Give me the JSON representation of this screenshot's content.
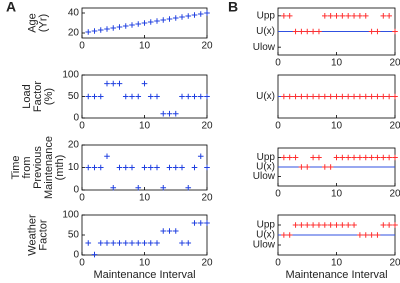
{
  "panel_labels": [
    "A",
    "B"
  ],
  "chart_data": [
    {
      "type": "scatter",
      "ylabel": [
        "Age",
        "(Yr)"
      ],
      "color": "#2040e0",
      "x": [
        1,
        2,
        3,
        4,
        5,
        6,
        7,
        8,
        9,
        10,
        11,
        12,
        13,
        14,
        15,
        16,
        17,
        18,
        19,
        20
      ],
      "values": [
        21,
        22,
        23,
        24,
        25,
        26,
        27,
        28,
        29,
        30,
        31,
        32,
        33,
        34,
        35,
        36,
        37,
        38,
        39,
        40
      ],
      "xlim": [
        0,
        20
      ],
      "xticks": [
        0,
        10,
        20
      ],
      "ylim": [
        15,
        45
      ],
      "yticks": [
        20,
        40
      ]
    },
    {
      "type": "scatter",
      "ylabel": [
        "Load",
        "Factor",
        "(%)"
      ],
      "color": "#2040e0",
      "x": [
        1,
        2,
        3,
        4,
        5,
        6,
        7,
        8,
        9,
        10,
        11,
        12,
        13,
        14,
        15,
        16,
        17,
        18,
        19,
        20
      ],
      "values": [
        50,
        50,
        50,
        80,
        80,
        80,
        50,
        50,
        50,
        80,
        50,
        50,
        10,
        10,
        10,
        50,
        50,
        50,
        50,
        50
      ],
      "xlim": [
        0,
        20
      ],
      "xticks": [
        0,
        10,
        20
      ],
      "ylim": [
        0,
        100
      ],
      "yticks": [
        0,
        50,
        100
      ]
    },
    {
      "type": "scatter",
      "ylabel": [
        "Time",
        "from",
        "Previous",
        "Maintenance",
        "(mth)"
      ],
      "color": "#2040e0",
      "x": [
        1,
        2,
        3,
        4,
        5,
        6,
        7,
        8,
        9,
        10,
        11,
        12,
        13,
        14,
        15,
        16,
        17,
        18,
        19,
        20
      ],
      "values": [
        10,
        10,
        10,
        15,
        1,
        10,
        10,
        10,
        1,
        10,
        10,
        10,
        1,
        10,
        10,
        10,
        1,
        10,
        15,
        10
      ],
      "xlim": [
        0,
        20
      ],
      "xticks": [
        0,
        10,
        20
      ],
      "ylim": [
        0,
        20
      ],
      "yticks": [
        0,
        10,
        20
      ]
    },
    {
      "type": "scatter",
      "ylabel": [
        "Weather",
        "Factor"
      ],
      "color": "#2040e0",
      "xlabel": "Maintenance Interval",
      "x": [
        1,
        2,
        3,
        4,
        5,
        6,
        7,
        8,
        9,
        10,
        11,
        12,
        13,
        14,
        15,
        16,
        17,
        18,
        19,
        20
      ],
      "values": [
        30,
        1,
        30,
        30,
        30,
        30,
        30,
        30,
        30,
        30,
        30,
        30,
        60,
        60,
        60,
        30,
        30,
        80,
        80,
        80
      ],
      "xlim": [
        0,
        20
      ],
      "xticks": [
        0,
        10,
        20
      ],
      "ylim": [
        0,
        100
      ],
      "yticks": [
        0,
        50,
        100
      ]
    },
    {
      "type": "levels",
      "color": "#ff3030",
      "hline": 1,
      "hline_color": "#3050e0",
      "x": [
        1,
        2,
        3,
        4,
        5,
        6,
        7,
        8,
        9,
        10,
        11,
        12,
        13,
        14,
        15,
        16,
        17,
        18,
        19,
        20
      ],
      "values": [
        2,
        2,
        1,
        1,
        1,
        1,
        1,
        2,
        2,
        2,
        2,
        2,
        2,
        2,
        2,
        1,
        1,
        2,
        2,
        1
      ],
      "xlim": [
        0,
        20
      ],
      "xticks": [
        0,
        10,
        20
      ],
      "ylim": [
        -0.5,
        2.5
      ],
      "yticks": [
        {
          "value": 0,
          "label": "Ulow"
        },
        {
          "value": 1,
          "label": "U(x)"
        },
        {
          "value": 2,
          "label": "Upp"
        }
      ]
    },
    {
      "type": "levels",
      "color": "#ff3030",
      "hline": 1,
      "hline_color": "#3050e0",
      "x": [
        1,
        2,
        3,
        4,
        5,
        6,
        7,
        8,
        9,
        10,
        11,
        12,
        13,
        14,
        15,
        16,
        17,
        18,
        19,
        20
      ],
      "values": [
        1,
        1,
        1,
        1,
        1,
        1,
        1,
        1,
        1,
        1,
        1,
        1,
        1,
        1,
        1,
        1,
        1,
        1,
        1,
        1
      ],
      "xlim": [
        0,
        20
      ],
      "xticks": [
        0,
        10,
        20
      ],
      "ylim": [
        0,
        2
      ],
      "yticks": [
        {
          "value": 1,
          "label": "U(x)"
        }
      ]
    },
    {
      "type": "levels",
      "color": "#ff3030",
      "hline": 1,
      "hline_color": "#3050e0",
      "x": [
        1,
        2,
        3,
        4,
        5,
        6,
        7,
        8,
        9,
        10,
        11,
        12,
        13,
        14,
        15,
        16,
        17,
        18,
        19,
        20
      ],
      "values": [
        2,
        2,
        2,
        1,
        1,
        2,
        2,
        1,
        1,
        2,
        2,
        2,
        2,
        2,
        2,
        2,
        2,
        2,
        2,
        2
      ],
      "xlim": [
        0,
        20
      ],
      "xticks": [
        0,
        10,
        20
      ],
      "ylim": [
        -1,
        3
      ],
      "yticks": [
        {
          "value": 0,
          "label": "Ulow"
        },
        {
          "value": 1,
          "label": "U(x)"
        },
        {
          "value": 2,
          "label": "Upp"
        }
      ]
    },
    {
      "type": "levels",
      "color": "#ff3030",
      "hline": 1,
      "hline_color": "#3050e0",
      "xlabel": "Maintenance Interval",
      "x": [
        1,
        2,
        3,
        4,
        5,
        6,
        7,
        8,
        9,
        10,
        11,
        12,
        13,
        14,
        15,
        16,
        17,
        18,
        19,
        20
      ],
      "values": [
        1,
        1,
        2,
        2,
        2,
        2,
        2,
        2,
        2,
        2,
        2,
        2,
        2,
        1,
        1,
        1,
        1,
        2,
        2,
        2
      ],
      "xlim": [
        0,
        20
      ],
      "xticks": [
        0,
        10,
        20
      ],
      "ylim": [
        -1,
        3
      ],
      "yticks": [
        {
          "value": 0,
          "label": "Ulow"
        },
        {
          "value": 1,
          "label": "U(x)"
        },
        {
          "value": 2,
          "label": "Upp"
        }
      ]
    }
  ]
}
